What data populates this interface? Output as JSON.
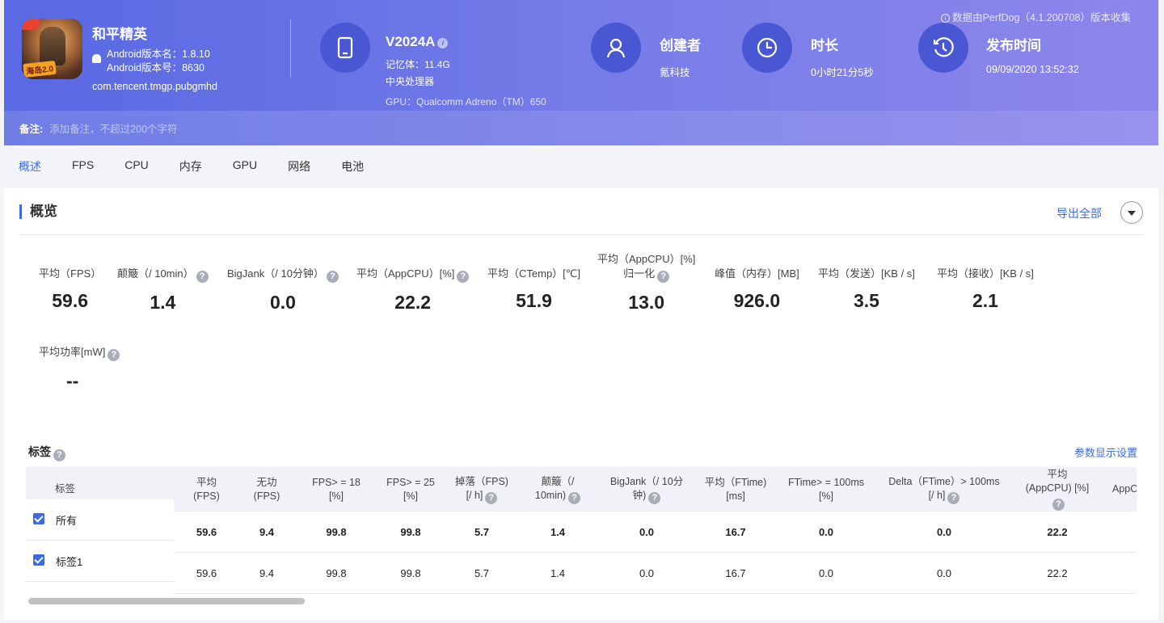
{
  "header": {
    "data_source": "数据由PerfDog（4.1.200708）版本收集",
    "app": {
      "name": "和平精英",
      "version_name": "Android版本名：1.8.10",
      "version_code": "Android版本号：8630",
      "package": "com.tencent.tmgp.pubgmhd",
      "icon_badge": "海岛2.0"
    },
    "device": {
      "model": "V2024A",
      "memory": "记忆体：11.4G",
      "cpu": "中央处理器",
      "gpu": "GPU：Qualcomm Adreno（TM）650"
    },
    "creator": {
      "title": "创建者",
      "value": "氪科技"
    },
    "duration": {
      "title": "时长",
      "value": "0小时21分5秒"
    },
    "publish": {
      "title": "发布时间",
      "value": "09/09/2020 13:52:32"
    },
    "remark": {
      "label": "备注:",
      "placeholder": "添加备注，不超过200个字符"
    }
  },
  "tabs": [
    "概述",
    "FPS",
    "CPU",
    "内存",
    "GPU",
    "网络",
    "电池"
  ],
  "overview": {
    "title": "概览",
    "export": "导出全部",
    "metrics": [
      {
        "label": "平均（FPS）",
        "value": "59.6"
      },
      {
        "label": "颠簸（/ 10min）",
        "value": "1.4"
      },
      {
        "label": "BigJank（/ 10分钟）",
        "value": "0.0"
      },
      {
        "label": "平均（AppCPU）[%]",
        "value": "22.2"
      },
      {
        "label": "平均（CTemp）[℃]",
        "value": "51.9"
      },
      {
        "label": "平均（AppCPU）[%]",
        "label2": "归一化",
        "value": "13.0"
      },
      {
        "label": "峰值（内存）[MB]",
        "value": "926.0"
      },
      {
        "label": "平均（发送）[KB / s]",
        "value": "3.5"
      },
      {
        "label": "平均（接收）[KB / s]",
        "value": "2.1"
      },
      {
        "label": "平均功率[mW]",
        "value": "--"
      }
    ]
  },
  "tags_section": {
    "title": "标签",
    "param_settings": "参数显示设置",
    "columns": [
      {
        "l1": "标签",
        "l2": ""
      },
      {
        "l1": "平均",
        "l2": "(FPS)"
      },
      {
        "l1": "无功",
        "l2": "(FPS)"
      },
      {
        "l1": "FPS> = 18",
        "l2": "[%]"
      },
      {
        "l1": "FPS> = 25",
        "l2": "[%]"
      },
      {
        "l1": "掉落（FPS)",
        "l2": "[/ h]"
      },
      {
        "l1": "颠簸（/",
        "l2": "10min)"
      },
      {
        "l1": "BigJank（/ 10分",
        "l2": "钟)"
      },
      {
        "l1": "平均（FTime)",
        "l2": "[ms]"
      },
      {
        "l1": "FTime> = 100ms",
        "l2": "[%]"
      },
      {
        "l1": "Delta（FTime）> 100ms",
        "l2": "[/ h]"
      },
      {
        "l1": "平均",
        "l2": "(AppCPU) [%]"
      },
      {
        "l1": "AppCPU",
        "l2": ""
      }
    ],
    "rows": [
      {
        "tag": "所有",
        "values": [
          "59.6",
          "9.4",
          "99.8",
          "99.8",
          "5.7",
          "1.4",
          "0.0",
          "16.7",
          "0.0",
          "0.0",
          "22.2"
        ]
      },
      {
        "tag": "标签1",
        "values": [
          "59.6",
          "9.4",
          "99.8",
          "99.8",
          "5.7",
          "1.4",
          "0.0",
          "16.7",
          "0.0",
          "0.0",
          "22.2"
        ]
      }
    ]
  },
  "colors": {
    "accent": "#3d6be8",
    "header_start": "#5f6fe4",
    "header_end": "#8d86ec"
  }
}
